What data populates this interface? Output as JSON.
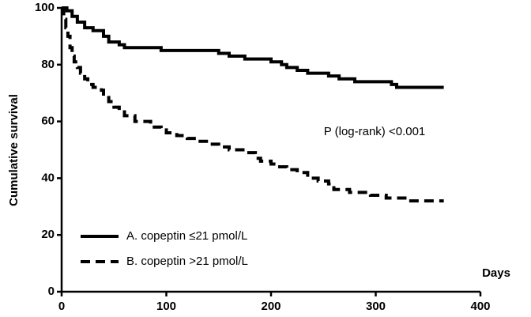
{
  "chart_data": {
    "type": "step",
    "ylabel": "Cumulative survival",
    "xlabel": "Days",
    "annotation": "P (log-rank) <0.001",
    "xlim": [
      0,
      400
    ],
    "xticks": [
      0,
      100,
      200,
      300,
      400
    ],
    "ylim": [
      0,
      100
    ],
    "yticks": [
      0,
      20,
      40,
      60,
      80,
      100
    ],
    "grid": false,
    "legend": "lower left",
    "series": [
      {
        "name": "A. copeptin ≤21 pmol/L",
        "color": "#000000",
        "dash": "solid",
        "x": [
          0,
          5,
          10,
          15,
          22,
          30,
          40,
          45,
          55,
          60,
          95,
          150,
          160,
          175,
          200,
          210,
          215,
          225,
          235,
          255,
          265,
          280,
          315,
          320,
          365
        ],
        "values": [
          100,
          99,
          97,
          95,
          93,
          92,
          90,
          88,
          87,
          86,
          85,
          84,
          83,
          82,
          81,
          80,
          79,
          78,
          77,
          76,
          75,
          74,
          73,
          72,
          72
        ]
      },
      {
        "name": "B. copeptin >21 pmol/L",
        "color": "#000000",
        "dash": "dashed",
        "x": [
          0,
          2,
          4,
          6,
          8,
          10,
          12,
          15,
          18,
          22,
          25,
          30,
          38,
          40,
          45,
          50,
          55,
          60,
          70,
          85,
          95,
          100,
          110,
          120,
          130,
          140,
          150,
          160,
          175,
          185,
          190,
          200,
          205,
          215,
          225,
          235,
          245,
          255,
          260,
          275,
          295,
          310,
          330,
          365
        ],
        "values": [
          100,
          96,
          93,
          90,
          86,
          83,
          81,
          79,
          77,
          75,
          73,
          72,
          71,
          69,
          67,
          65,
          64,
          62,
          60,
          58,
          57,
          56,
          55,
          54,
          53,
          52,
          51,
          50,
          49,
          47,
          46,
          45,
          44,
          43,
          42,
          40,
          39,
          38,
          36,
          35,
          34,
          33,
          32,
          32
        ]
      }
    ]
  }
}
